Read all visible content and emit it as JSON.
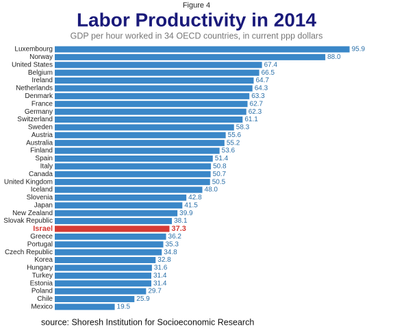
{
  "chart_data": {
    "type": "bar",
    "orientation": "horizontal",
    "figure_label": "Figure 4",
    "title": "Labor Productivity in 2014",
    "subtitle": "GDP per hour worked in 34 OECD countries, in current ppp dollars",
    "source": "source: Shoresh Institution for Socioeconomic Research",
    "categories": [
      "Luxembourg",
      "Norway",
      "United States",
      "Belgium",
      "Ireland",
      "Netherlands",
      "Denmark",
      "France",
      "Germany",
      "Switzerland",
      "Sweden",
      "Austria",
      "Australia",
      "Finland",
      "Spain",
      "Italy",
      "Canada",
      "United Kingdom",
      "Iceland",
      "Slovenia",
      "Japan",
      "New Zealand",
      "Slovak Republic",
      "Israel",
      "Greece",
      "Portugal",
      "Czech Republic",
      "Korea",
      "Hungary",
      "Turkey",
      "Estonia",
      "Poland",
      "Chile",
      "Mexico"
    ],
    "values": [
      95.9,
      88.0,
      67.4,
      66.5,
      64.7,
      64.3,
      63.3,
      62.7,
      62.3,
      61.1,
      58.3,
      55.6,
      55.2,
      53.6,
      51.4,
      50.8,
      50.7,
      50.5,
      48.0,
      42.8,
      41.5,
      39.9,
      38.1,
      37.3,
      36.2,
      35.3,
      34.8,
      32.8,
      31.6,
      31.4,
      31.4,
      29.7,
      25.9,
      19.5
    ],
    "value_labels": [
      "95.9",
      "88.0",
      "67.4",
      "66.5",
      "64.7",
      "64.3",
      "63.3",
      "62.7",
      "62.3",
      "61.1",
      "58.3",
      "55.6",
      "55.2",
      "53.6",
      "51.4",
      "50.8",
      "50.7",
      "50.5",
      "48.0",
      "42.8",
      "41.5",
      "39.9",
      "38.1",
      "37.3",
      "36.2",
      "35.3",
      "34.8",
      "32.8",
      "31.6",
      "31.4",
      "31.4",
      "29.7",
      "25.9",
      "19.5"
    ],
    "colors": [
      "#3a87c8",
      "#3a87c8",
      "#3a87c8",
      "#3a87c8",
      "#3a87c8",
      "#3a87c8",
      "#3a87c8",
      "#3a87c8",
      "#3a87c8",
      "#3a87c8",
      "#3a87c8",
      "#3a87c8",
      "#3a87c8",
      "#3a87c8",
      "#3a87c8",
      "#3a87c8",
      "#3a87c8",
      "#3a87c8",
      "#3a87c8",
      "#3a87c8",
      "#3a87c8",
      "#3a87c8",
      "#3a87c8",
      "#d63b35",
      "#3a87c8",
      "#3a87c8",
      "#3a87c8",
      "#3a87c8",
      "#3a87c8",
      "#3a87c8",
      "#3a87c8",
      "#3a87c8",
      "#3a87c8",
      "#3a87c8"
    ]
  }
}
